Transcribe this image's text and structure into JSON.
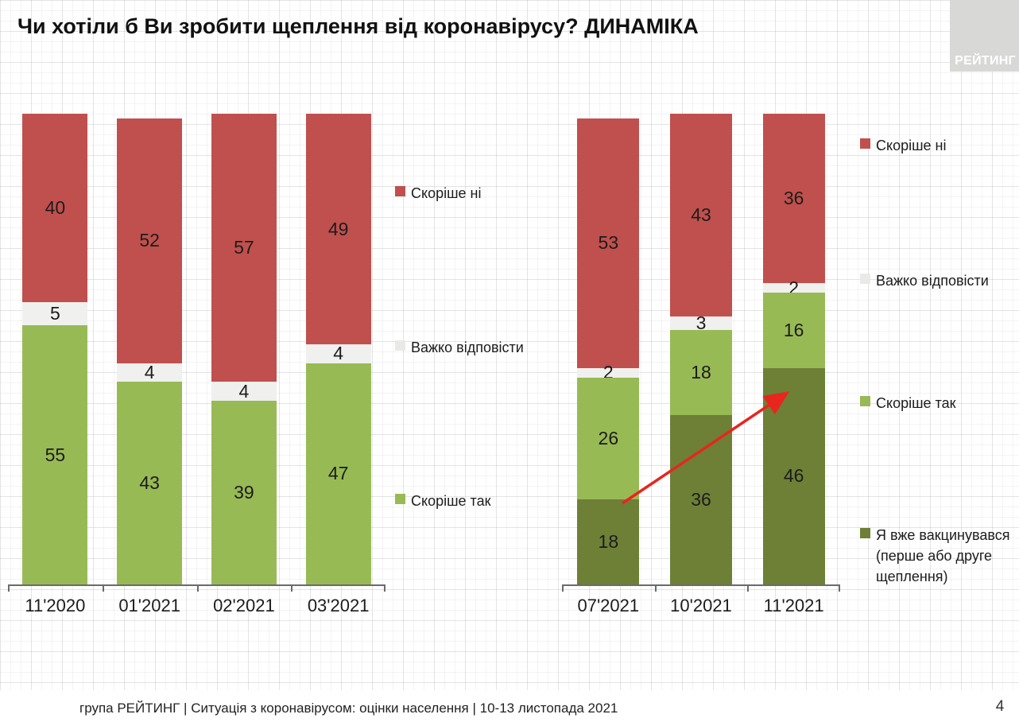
{
  "page": {
    "title": "Чи хотіли б Ви зробити щеплення від коронавірусу? ДИНАМІКА",
    "logo": "РЕЙТИНГ",
    "footer": "група РЕЙТИНГ | Ситуація з коронавірусом: оцінки населення | 10-13 листопада 2021",
    "page_number": "4"
  },
  "colors": {
    "red": "#c0504d",
    "neutral": "#f0f0ee",
    "neutral_swatch": "#e9e9e7",
    "light_green": "#98ba55",
    "dark_green": "#6d8036",
    "axis": "#6b6b6b",
    "arrow": "#e8251f"
  },
  "chart_data": [
    {
      "type": "bar",
      "stacked": true,
      "title": "",
      "xlabel": "",
      "ylabel": "",
      "ylim": [
        0,
        100
      ],
      "grid": false,
      "categories": [
        "11'2020",
        "01'2021",
        "02'2021",
        "03'2021"
      ],
      "series": [
        {
          "name": "Скоріше так",
          "color_key": "light_green",
          "values": [
            55,
            43,
            39,
            47
          ]
        },
        {
          "name": "Важко відповісти",
          "color_key": "neutral",
          "values": [
            5,
            4,
            4,
            4
          ]
        },
        {
          "name": "Скоріше ні",
          "color_key": "red",
          "values": [
            40,
            52,
            57,
            49
          ]
        }
      ],
      "legend_position": "right",
      "legend": [
        {
          "label": "Скоріше ні",
          "color_key": "red"
        },
        {
          "label": "Важко відповісти",
          "color_key": "neutral_swatch"
        },
        {
          "label": "Скоріше так",
          "color_key": "light_green"
        }
      ]
    },
    {
      "type": "bar",
      "stacked": true,
      "title": "",
      "xlabel": "",
      "ylabel": "",
      "ylim": [
        0,
        100
      ],
      "grid": false,
      "categories": [
        "07'2021",
        "10'2021",
        "11'2021"
      ],
      "series": [
        {
          "name": "Я вже вакцинувався (перше або друге щеплення)",
          "color_key": "dark_green",
          "values": [
            18,
            36,
            46
          ]
        },
        {
          "name": "Скоріше так",
          "color_key": "light_green",
          "values": [
            26,
            18,
            16
          ]
        },
        {
          "name": "Важко відповісти",
          "color_key": "neutral",
          "values": [
            2,
            3,
            2
          ]
        },
        {
          "name": "Скоріше ні",
          "color_key": "red",
          "values": [
            53,
            43,
            36
          ]
        }
      ],
      "legend_position": "right",
      "legend": [
        {
          "label": "Скоріше ні",
          "color_key": "red"
        },
        {
          "label": "Важко відповісти",
          "color_key": "neutral_swatch"
        },
        {
          "label": "Скоріше так",
          "color_key": "light_green"
        },
        {
          "label": "Я вже вакцинувався (перше або друге щеплення)",
          "color_key": "dark_green"
        }
      ],
      "annotation": {
        "type": "arrow",
        "from_category": "07'2021",
        "to_category": "11'2021",
        "meaning": "growth of already-vaccinated share",
        "color_key": "arrow"
      }
    }
  ]
}
